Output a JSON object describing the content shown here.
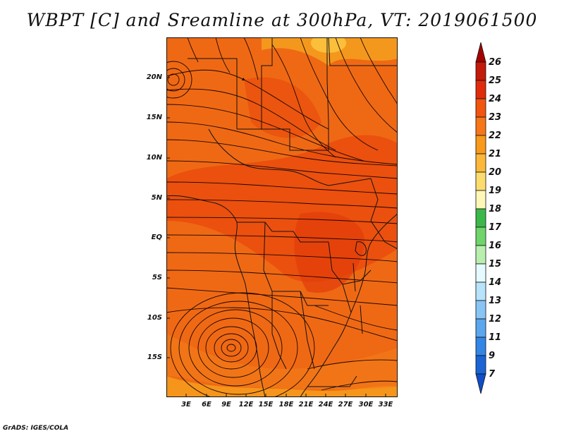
{
  "title": "WBPT [C] and Sreamline at 300hPa, VT: 2019061500",
  "credit": "GrADS: IGES/COLA",
  "map": {
    "region": "Central and Southern Africa",
    "fill_variable": "WBPT [C]",
    "overlay": "Streamlines at 300hPa",
    "lat_labels": [
      "20N",
      "15N",
      "10N",
      "5N",
      "EQ",
      "5S",
      "10S",
      "15S"
    ],
    "lon_labels": [
      "3E",
      "6E",
      "9E",
      "12E",
      "15E",
      "18E",
      "21E",
      "24E",
      "27E",
      "30E",
      "33E"
    ]
  },
  "colorbar": {
    "labels": [
      "26",
      "25",
      "24",
      "23",
      "22",
      "21",
      "20",
      "19",
      "18",
      "17",
      "16",
      "15",
      "14",
      "13",
      "12",
      "11",
      "9",
      "7"
    ],
    "colors": [
      "#a50000",
      "#c41a0a",
      "#e02c0a",
      "#f2550f",
      "#f7761a",
      "#f99a1c",
      "#fbb83a",
      "#fddc6e",
      "#fff7b8",
      "#3cb84a",
      "#6fd46a",
      "#b8efae",
      "#e6fbff",
      "#b7e3fb",
      "#88c5f5",
      "#5ba6ee",
      "#3385e6",
      "#1a64d6",
      "#0f4ec8"
    ]
  }
}
